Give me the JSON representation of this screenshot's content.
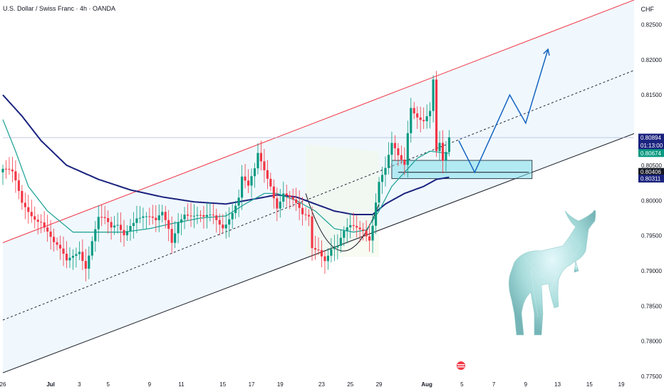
{
  "header": {
    "title": "U.S. Dollar / Swiss Franc · 4h · OANDA",
    "currency": "CHF"
  },
  "colors": {
    "up": "#089981",
    "down": "#f23645",
    "ma_slow": "#1a237e",
    "ma_fast": "#26a69a",
    "channel_top": "#f23645",
    "channel_bottom": "#131722",
    "channel_fill": "#e3f2fd",
    "zone": "#80deea",
    "projection": "#1565c0",
    "price_line": "#9fa8da"
  },
  "chart_data": {
    "type": "candlestick",
    "symbol": "USDCHF",
    "interval": "4h",
    "ylim": [
      0.775,
      0.8285
    ],
    "y_ticks": [
      "0.82500",
      "0.82000",
      "0.81500",
      "0.80500",
      "0.80000",
      "0.79500",
      "0.79000",
      "0.78500",
      "0.78000",
      "0.77500"
    ],
    "x_ticks": [
      "26",
      "Jul",
      "3",
      "5",
      "9",
      "11",
      "15",
      "17",
      "19",
      "23",
      "25",
      "29",
      "Aug",
      "5",
      "7",
      "9",
      "13",
      "15",
      "19"
    ],
    "x_tick_index": [
      0,
      15,
      24,
      33,
      46,
      56,
      69,
      78,
      87,
      100,
      109,
      118,
      133,
      144,
      154,
      164,
      174,
      184,
      194
    ],
    "close_anchors": [
      [
        0,
        0.8045
      ],
      [
        3,
        0.803
      ],
      [
        6,
        0.799
      ],
      [
        9,
        0.7985
      ],
      [
        12,
        0.798
      ],
      [
        14,
        0.796
      ],
      [
        16,
        0.7935
      ],
      [
        18,
        0.792
      ],
      [
        20,
        0.7905
      ],
      [
        22,
        0.792
      ],
      [
        24,
        0.7935
      ],
      [
        26,
        0.7915
      ],
      [
        28,
        0.795
      ],
      [
        30,
        0.7975
      ],
      [
        32,
        0.7965
      ],
      [
        34,
        0.795
      ],
      [
        36,
        0.796
      ],
      [
        38,
        0.7955
      ],
      [
        40,
        0.7975
      ],
      [
        42,
        0.7985
      ],
      [
        44,
        0.798
      ],
      [
        46,
        0.797
      ],
      [
        48,
        0.796
      ],
      [
        50,
        0.7975
      ],
      [
        52,
        0.796
      ],
      [
        53,
        0.7945
      ],
      [
        55,
        0.798
      ],
      [
        57,
        0.799
      ],
      [
        60,
        0.7975
      ],
      [
        63,
        0.7965
      ],
      [
        66,
        0.7975
      ],
      [
        69,
        0.797
      ],
      [
        71,
        0.7985
      ],
      [
        74,
        0.8005
      ],
      [
        75,
        0.803
      ],
      [
        77,
        0.801
      ],
      [
        79,
        0.8035
      ],
      [
        80,
        0.806
      ],
      [
        82,
        0.8045
      ],
      [
        84,
        0.803
      ],
      [
        86,
        0.8
      ],
      [
        88,
        0.8015
      ],
      [
        90,
        0.8
      ],
      [
        92,
        0.7985
      ],
      [
        94,
        0.797
      ],
      [
        96,
        0.7975
      ],
      [
        97,
        0.7935
      ],
      [
        99,
        0.794
      ],
      [
        101,
        0.7925
      ],
      [
        103,
        0.7935
      ],
      [
        105,
        0.793
      ],
      [
        107,
        0.7945
      ],
      [
        109,
        0.7955
      ],
      [
        111,
        0.796
      ],
      [
        113,
        0.7965
      ],
      [
        115,
        0.7955
      ],
      [
        116,
        0.7975
      ],
      [
        117,
        0.8005
      ],
      [
        118,
        0.803
      ],
      [
        120,
        0.804
      ],
      [
        122,
        0.807
      ],
      [
        124,
        0.8055
      ],
      [
        126,
        0.805
      ],
      [
        127,
        0.81
      ],
      [
        128,
        0.814
      ],
      [
        130,
        0.813
      ],
      [
        132,
        0.812
      ],
      [
        134,
        0.8125
      ],
      [
        135,
        0.8165
      ],
      [
        136,
        0.806
      ],
      [
        137,
        0.807
      ],
      [
        138,
        0.8045
      ],
      [
        139,
        0.806
      ],
      [
        140,
        0.8085
      ]
    ],
    "sma_slow_anchors": [
      [
        0,
        0.815
      ],
      [
        6,
        0.812
      ],
      [
        12,
        0.8085
      ],
      [
        20,
        0.805
      ],
      [
        30,
        0.803
      ],
      [
        40,
        0.8015
      ],
      [
        50,
        0.8005
      ],
      [
        60,
        0.7998
      ],
      [
        70,
        0.7995
      ],
      [
        80,
        0.8003
      ],
      [
        86,
        0.8008
      ],
      [
        92,
        0.8005
      ],
      [
        98,
        0.7995
      ],
      [
        104,
        0.7985
      ],
      [
        110,
        0.798
      ],
      [
        116,
        0.798
      ],
      [
        120,
        0.7995
      ],
      [
        126,
        0.801
      ],
      [
        132,
        0.802
      ],
      [
        136,
        0.803
      ],
      [
        140,
        0.8033
      ]
    ],
    "ema_fast_anchors": [
      [
        0,
        0.8115
      ],
      [
        4,
        0.807
      ],
      [
        8,
        0.802
      ],
      [
        14,
        0.7985
      ],
      [
        22,
        0.7955
      ],
      [
        30,
        0.7955
      ],
      [
        38,
        0.7955
      ],
      [
        46,
        0.796
      ],
      [
        54,
        0.7968
      ],
      [
        62,
        0.7975
      ],
      [
        70,
        0.7978
      ],
      [
        76,
        0.7995
      ],
      [
        82,
        0.801
      ],
      [
        86,
        0.801
      ],
      [
        92,
        0.8
      ],
      [
        98,
        0.7985
      ],
      [
        104,
        0.796
      ],
      [
        110,
        0.7955
      ],
      [
        114,
        0.7958
      ],
      [
        118,
        0.7985
      ],
      [
        122,
        0.802
      ],
      [
        126,
        0.804
      ],
      [
        130,
        0.806
      ],
      [
        134,
        0.807
      ],
      [
        138,
        0.8068
      ],
      [
        140,
        0.8067
      ]
    ],
    "channel": {
      "upper": [
        [
          0,
          0.794
        ],
        [
          198,
          0.8285
        ]
      ],
      "middle": [
        [
          0,
          0.783
        ],
        [
          198,
          0.8185
        ]
      ],
      "lower": [
        [
          0,
          0.7755
        ],
        [
          198,
          0.8095
        ]
      ]
    },
    "demand_zone": {
      "x_start": 122,
      "x_end": 166,
      "y_low": 0.8031,
      "y_high": 0.8057
    },
    "zone_level": {
      "x_start": 124,
      "x_end": 165,
      "y": 0.804
    },
    "cup_curve": [
      [
        95,
        0.801
      ],
      [
        106,
        0.7915
      ],
      [
        118,
        0.7995
      ]
    ],
    "projection": [
      [
        143,
        0.8085
      ],
      [
        148,
        0.804
      ],
      [
        159,
        0.815
      ],
      [
        164,
        0.811
      ],
      [
        171,
        0.8215
      ]
    ],
    "price_labels": [
      {
        "text": "0.80894",
        "sub": "01:13:00",
        "value": 0.80894,
        "color": "#1a237e"
      },
      {
        "text": "0.80674",
        "value": 0.80674,
        "color": "#089981"
      },
      {
        "text": "0.80406",
        "value": 0.80406,
        "color": "#131722"
      },
      {
        "text": "0.80311",
        "value": 0.80311,
        "color": "#1a237e"
      }
    ]
  }
}
